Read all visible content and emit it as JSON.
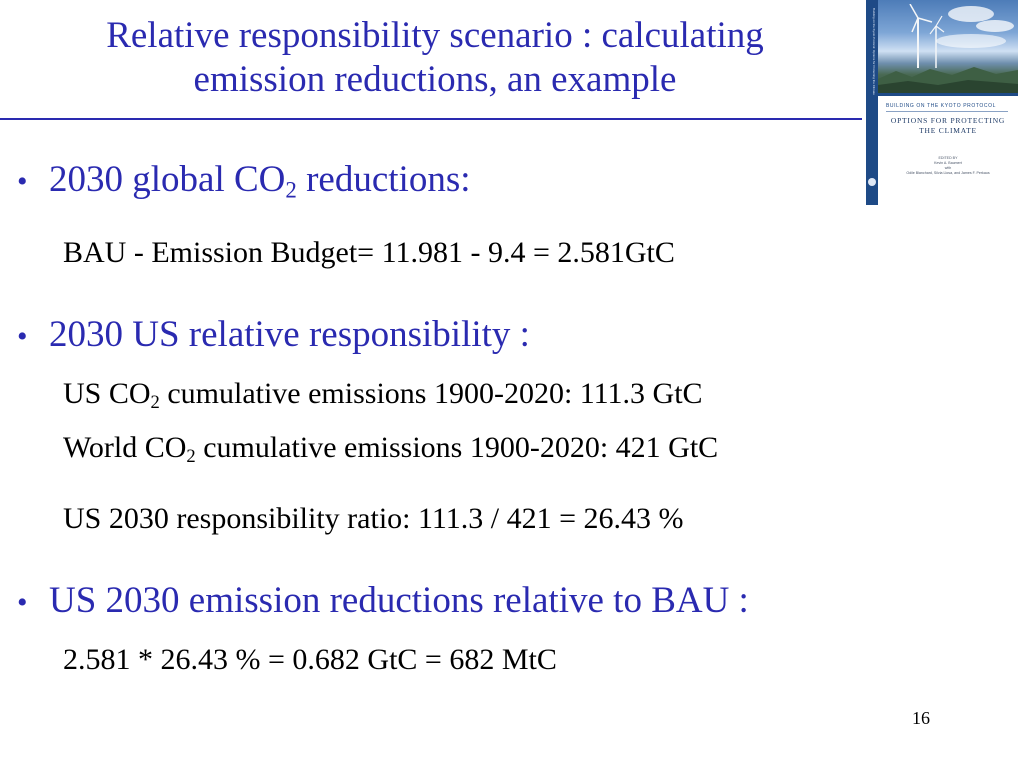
{
  "slide": {
    "title_line1": "Relative responsibility scenario : calculating",
    "title_line2": "emission reductions, an example",
    "page_number": "16"
  },
  "book_cover": {
    "spine_text": "Building on the Kyoto Protocol: Options for Protecting the Climate",
    "series": "BUILDING ON THE KYOTO PROTOCOL",
    "title_line1": "OPTIONS FOR PROTECTING",
    "title_line2": "THE CLIMATE",
    "credit_edited": "EDITED BY",
    "credit_editors1": "Kevin A. Baumert",
    "credit_with": "with",
    "credit_editors2": "Odile Blanchard, Silvia Llosa, and James F. Perkaus",
    "colors": {
      "spine": "#1e4a86",
      "sky": "#7ea6d6",
      "title": "#1e3a66"
    }
  },
  "bullets": [
    {
      "bullet": "•",
      "text_before_sub": "2030 global CO",
      "sub": "2",
      "text_after_sub": " reductions:",
      "lines": [
        {
          "text": "BAU - Emission Budget= 11.981 - 9.4 = 2.581GtC"
        }
      ]
    },
    {
      "bullet": "•",
      "text": "2030 US relative responsibility :",
      "lines": [
        {
          "before": "US CO",
          "sub": "2",
          "after": " cumulative emissions 1900-2020: 111.3 GtC"
        },
        {
          "before": "World CO",
          "sub": "2",
          "after": " cumulative emissions 1900-2020: 421 GtC"
        },
        {
          "text": "US 2030 responsibility ratio: 111.3 / 421 = 26.43 %"
        }
      ]
    },
    {
      "bullet": "•",
      "text": "US 2030 emission reductions relative to BAU :",
      "lines": [
        {
          "text": "2.581 * 26.43 % = 0.682 GtC = 682 MtC"
        }
      ]
    }
  ],
  "colors": {
    "heading": "#2a2ab0",
    "body": "#000000",
    "rule": "#2a2ab0"
  }
}
